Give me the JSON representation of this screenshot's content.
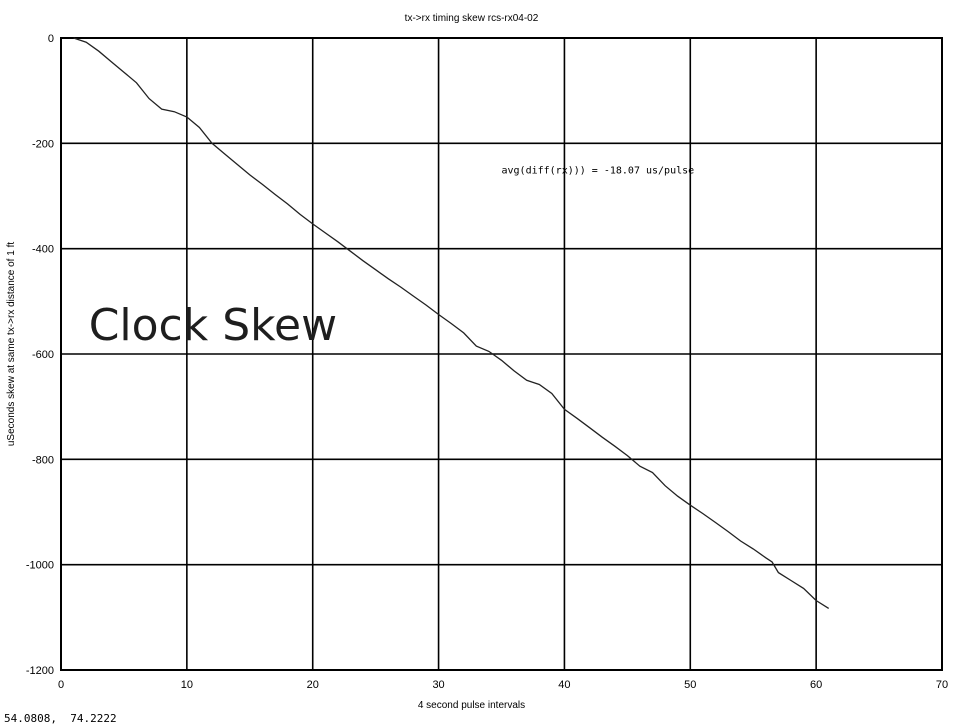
{
  "chart_data": {
    "type": "line",
    "title": "tx->rx timing skew rcs-rx04-02",
    "xlabel": "4 second pulse intervals",
    "ylabel": "uSeconds skew at same tx->rx distance of 1 ft",
    "xlim": [
      0,
      70
    ],
    "ylim": [
      -1200,
      0
    ],
    "x_ticks": [
      0,
      10,
      20,
      30,
      40,
      50,
      60,
      70
    ],
    "y_ticks": [
      0,
      -200,
      -400,
      -600,
      -800,
      -1000,
      -1200
    ],
    "grid": true,
    "annotations": [
      {
        "text": "avg(diff(rx))) = -18.07 us/pulse",
        "x": 35,
        "y": -250
      },
      {
        "text": "Clock Skew",
        "x": 2.2,
        "y": -545
      }
    ],
    "series": [
      {
        "points": [
          [
            1,
            0
          ],
          [
            2,
            -8
          ],
          [
            3,
            -25
          ],
          [
            4,
            -45
          ],
          [
            5,
            -65
          ],
          [
            6,
            -85
          ],
          [
            7,
            -115
          ],
          [
            8,
            -135
          ],
          [
            9,
            -140
          ],
          [
            10,
            -150
          ],
          [
            11,
            -170
          ],
          [
            12,
            -200
          ],
          [
            13,
            -220
          ],
          [
            14,
            -240
          ],
          [
            15,
            -260
          ],
          [
            16,
            -278
          ],
          [
            17,
            -297
          ],
          [
            18,
            -315
          ],
          [
            19,
            -335
          ],
          [
            20,
            -353
          ],
          [
            21,
            -370
          ],
          [
            22,
            -387
          ],
          [
            23,
            -405
          ],
          [
            24,
            -423
          ],
          [
            25,
            -440
          ],
          [
            26,
            -457
          ],
          [
            27,
            -473
          ],
          [
            28,
            -490
          ],
          [
            29,
            -507
          ],
          [
            30,
            -525
          ],
          [
            31,
            -542
          ],
          [
            32,
            -560
          ],
          [
            33,
            -585
          ],
          [
            34,
            -595
          ],
          [
            35,
            -612
          ],
          [
            36,
            -632
          ],
          [
            37,
            -650
          ],
          [
            38,
            -658
          ],
          [
            39,
            -675
          ],
          [
            40,
            -705
          ],
          [
            41,
            -722
          ],
          [
            42,
            -740
          ],
          [
            43,
            -758
          ],
          [
            44,
            -775
          ],
          [
            45,
            -793
          ],
          [
            46,
            -813
          ],
          [
            47,
            -825
          ],
          [
            48,
            -850
          ],
          [
            49,
            -870
          ],
          [
            50,
            -887
          ],
          [
            51,
            -903
          ],
          [
            52,
            -920
          ],
          [
            53,
            -937
          ],
          [
            54,
            -955
          ],
          [
            55,
            -970
          ],
          [
            56,
            -987
          ],
          [
            56.5,
            -995
          ],
          [
            57,
            -1015
          ],
          [
            58,
            -1030
          ],
          [
            59,
            -1045
          ],
          [
            60,
            -1068
          ],
          [
            61,
            -1083
          ]
        ]
      }
    ]
  },
  "status": {
    "coordinates": "54.0808,  74.2222"
  },
  "colors": {
    "background": "#ffffff",
    "axis": "#000000",
    "grid": "#000000",
    "line": "#222222",
    "text": "#000000",
    "overlay_text": "#1e1e1e"
  }
}
